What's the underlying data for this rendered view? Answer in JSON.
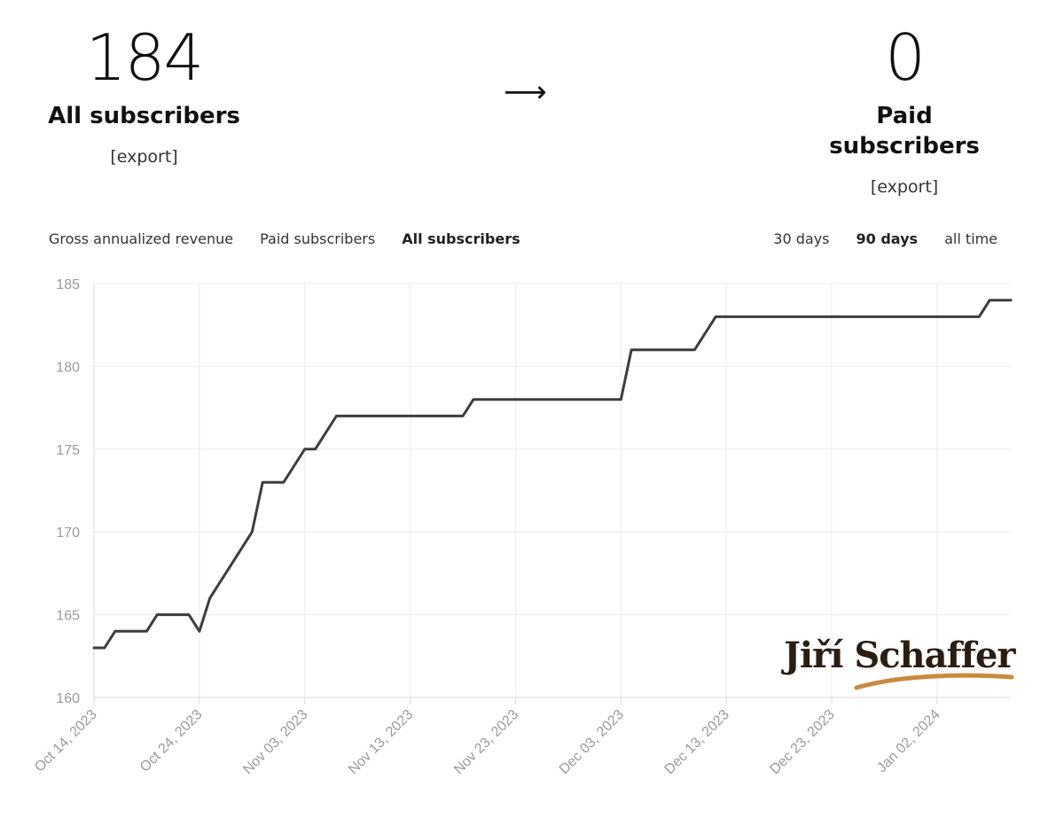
{
  "stats": {
    "left": {
      "number": "184",
      "label": "All subscribers",
      "export": "[export]"
    },
    "arrow": "⟶",
    "right": {
      "number": "0",
      "label": "Paid subscribers",
      "export": "[export]"
    }
  },
  "tabs": [
    {
      "label": "Gross annualized revenue",
      "active": false
    },
    {
      "label": "Paid subscribers",
      "active": false
    },
    {
      "label": "All subscribers",
      "active": true
    }
  ],
  "ranges": [
    {
      "label": "30 days",
      "active": false
    },
    {
      "label": "90 days",
      "active": true
    },
    {
      "label": "all time",
      "active": false
    }
  ],
  "logo": {
    "text": "Jiří Schaffer",
    "accent_color": "#c98a3e",
    "text_color": "#2a1d12"
  },
  "chart_data": {
    "type": "line",
    "title": "",
    "xlabel": "",
    "ylabel": "",
    "ylim": [
      160,
      185
    ],
    "xlim": [
      "2023-10-14",
      "2024-01-09"
    ],
    "yticks": [
      185,
      180,
      175,
      170,
      165,
      160
    ],
    "xticks": [
      "Oct 14, 2023",
      "Oct 24, 2023",
      "Nov 03, 2023",
      "Nov 13, 2023",
      "Nov 23, 2023",
      "Dec 03, 2023",
      "Dec 13, 2023",
      "Dec 23, 2023",
      "Jan 02, 2024"
    ],
    "grid": true,
    "line_color": "#3d3d3d",
    "series": [
      {
        "x": [
          "2023-10-14",
          "2023-10-15",
          "2023-10-16",
          "2023-10-17",
          "2023-10-18",
          "2023-10-19",
          "2023-10-20",
          "2023-10-21",
          "2023-10-22",
          "2023-10-23",
          "2023-10-24",
          "2023-10-25",
          "2023-10-26",
          "2023-10-27",
          "2023-10-28",
          "2023-10-29",
          "2023-10-30",
          "2023-10-31",
          "2023-11-01",
          "2023-11-02",
          "2023-11-03",
          "2023-11-04",
          "2023-11-05",
          "2023-11-06",
          "2023-11-07",
          "2023-11-08",
          "2023-11-09",
          "2023-11-10",
          "2023-11-11",
          "2023-11-12",
          "2023-11-13",
          "2023-11-14",
          "2023-11-15",
          "2023-11-16",
          "2023-11-17",
          "2023-11-18",
          "2023-11-19",
          "2023-11-20",
          "2023-11-21",
          "2023-11-22",
          "2023-11-23",
          "2023-11-24",
          "2023-11-25",
          "2023-11-26",
          "2023-11-27",
          "2023-11-28",
          "2023-11-29",
          "2023-11-30",
          "2023-12-01",
          "2023-12-02",
          "2023-12-03",
          "2023-12-04",
          "2023-12-05",
          "2023-12-06",
          "2023-12-07",
          "2023-12-08",
          "2023-12-09",
          "2023-12-10",
          "2023-12-11",
          "2023-12-12",
          "2023-12-13",
          "2023-12-14",
          "2023-12-15",
          "2023-12-16",
          "2023-12-17",
          "2023-12-18",
          "2023-12-19",
          "2023-12-20",
          "2023-12-21",
          "2023-12-22",
          "2023-12-23",
          "2023-12-24",
          "2023-12-25",
          "2023-12-26",
          "2023-12-27",
          "2023-12-28",
          "2023-12-29",
          "2023-12-30",
          "2023-12-31",
          "2024-01-01",
          "2024-01-02",
          "2024-01-03",
          "2024-01-04",
          "2024-01-05",
          "2024-01-06",
          "2024-01-07",
          "2024-01-08",
          "2024-01-09"
        ],
        "y": [
          163,
          163,
          164,
          164,
          164,
          164,
          165,
          165,
          165,
          165,
          164,
          166,
          167,
          168,
          169,
          170,
          173,
          173,
          173,
          174,
          175,
          175,
          176,
          177,
          177,
          177,
          177,
          177,
          177,
          177,
          177,
          177,
          177,
          177,
          177,
          177,
          178,
          178,
          178,
          178,
          178,
          178,
          178,
          178,
          178,
          178,
          178,
          178,
          178,
          178,
          178,
          181,
          181,
          181,
          181,
          181,
          181,
          181,
          182,
          183,
          183,
          183,
          183,
          183,
          183,
          183,
          183,
          183,
          183,
          183,
          183,
          183,
          183,
          183,
          183,
          183,
          183,
          183,
          183,
          183,
          183,
          183,
          183,
          183,
          183,
          184,
          184,
          184
        ]
      }
    ]
  }
}
